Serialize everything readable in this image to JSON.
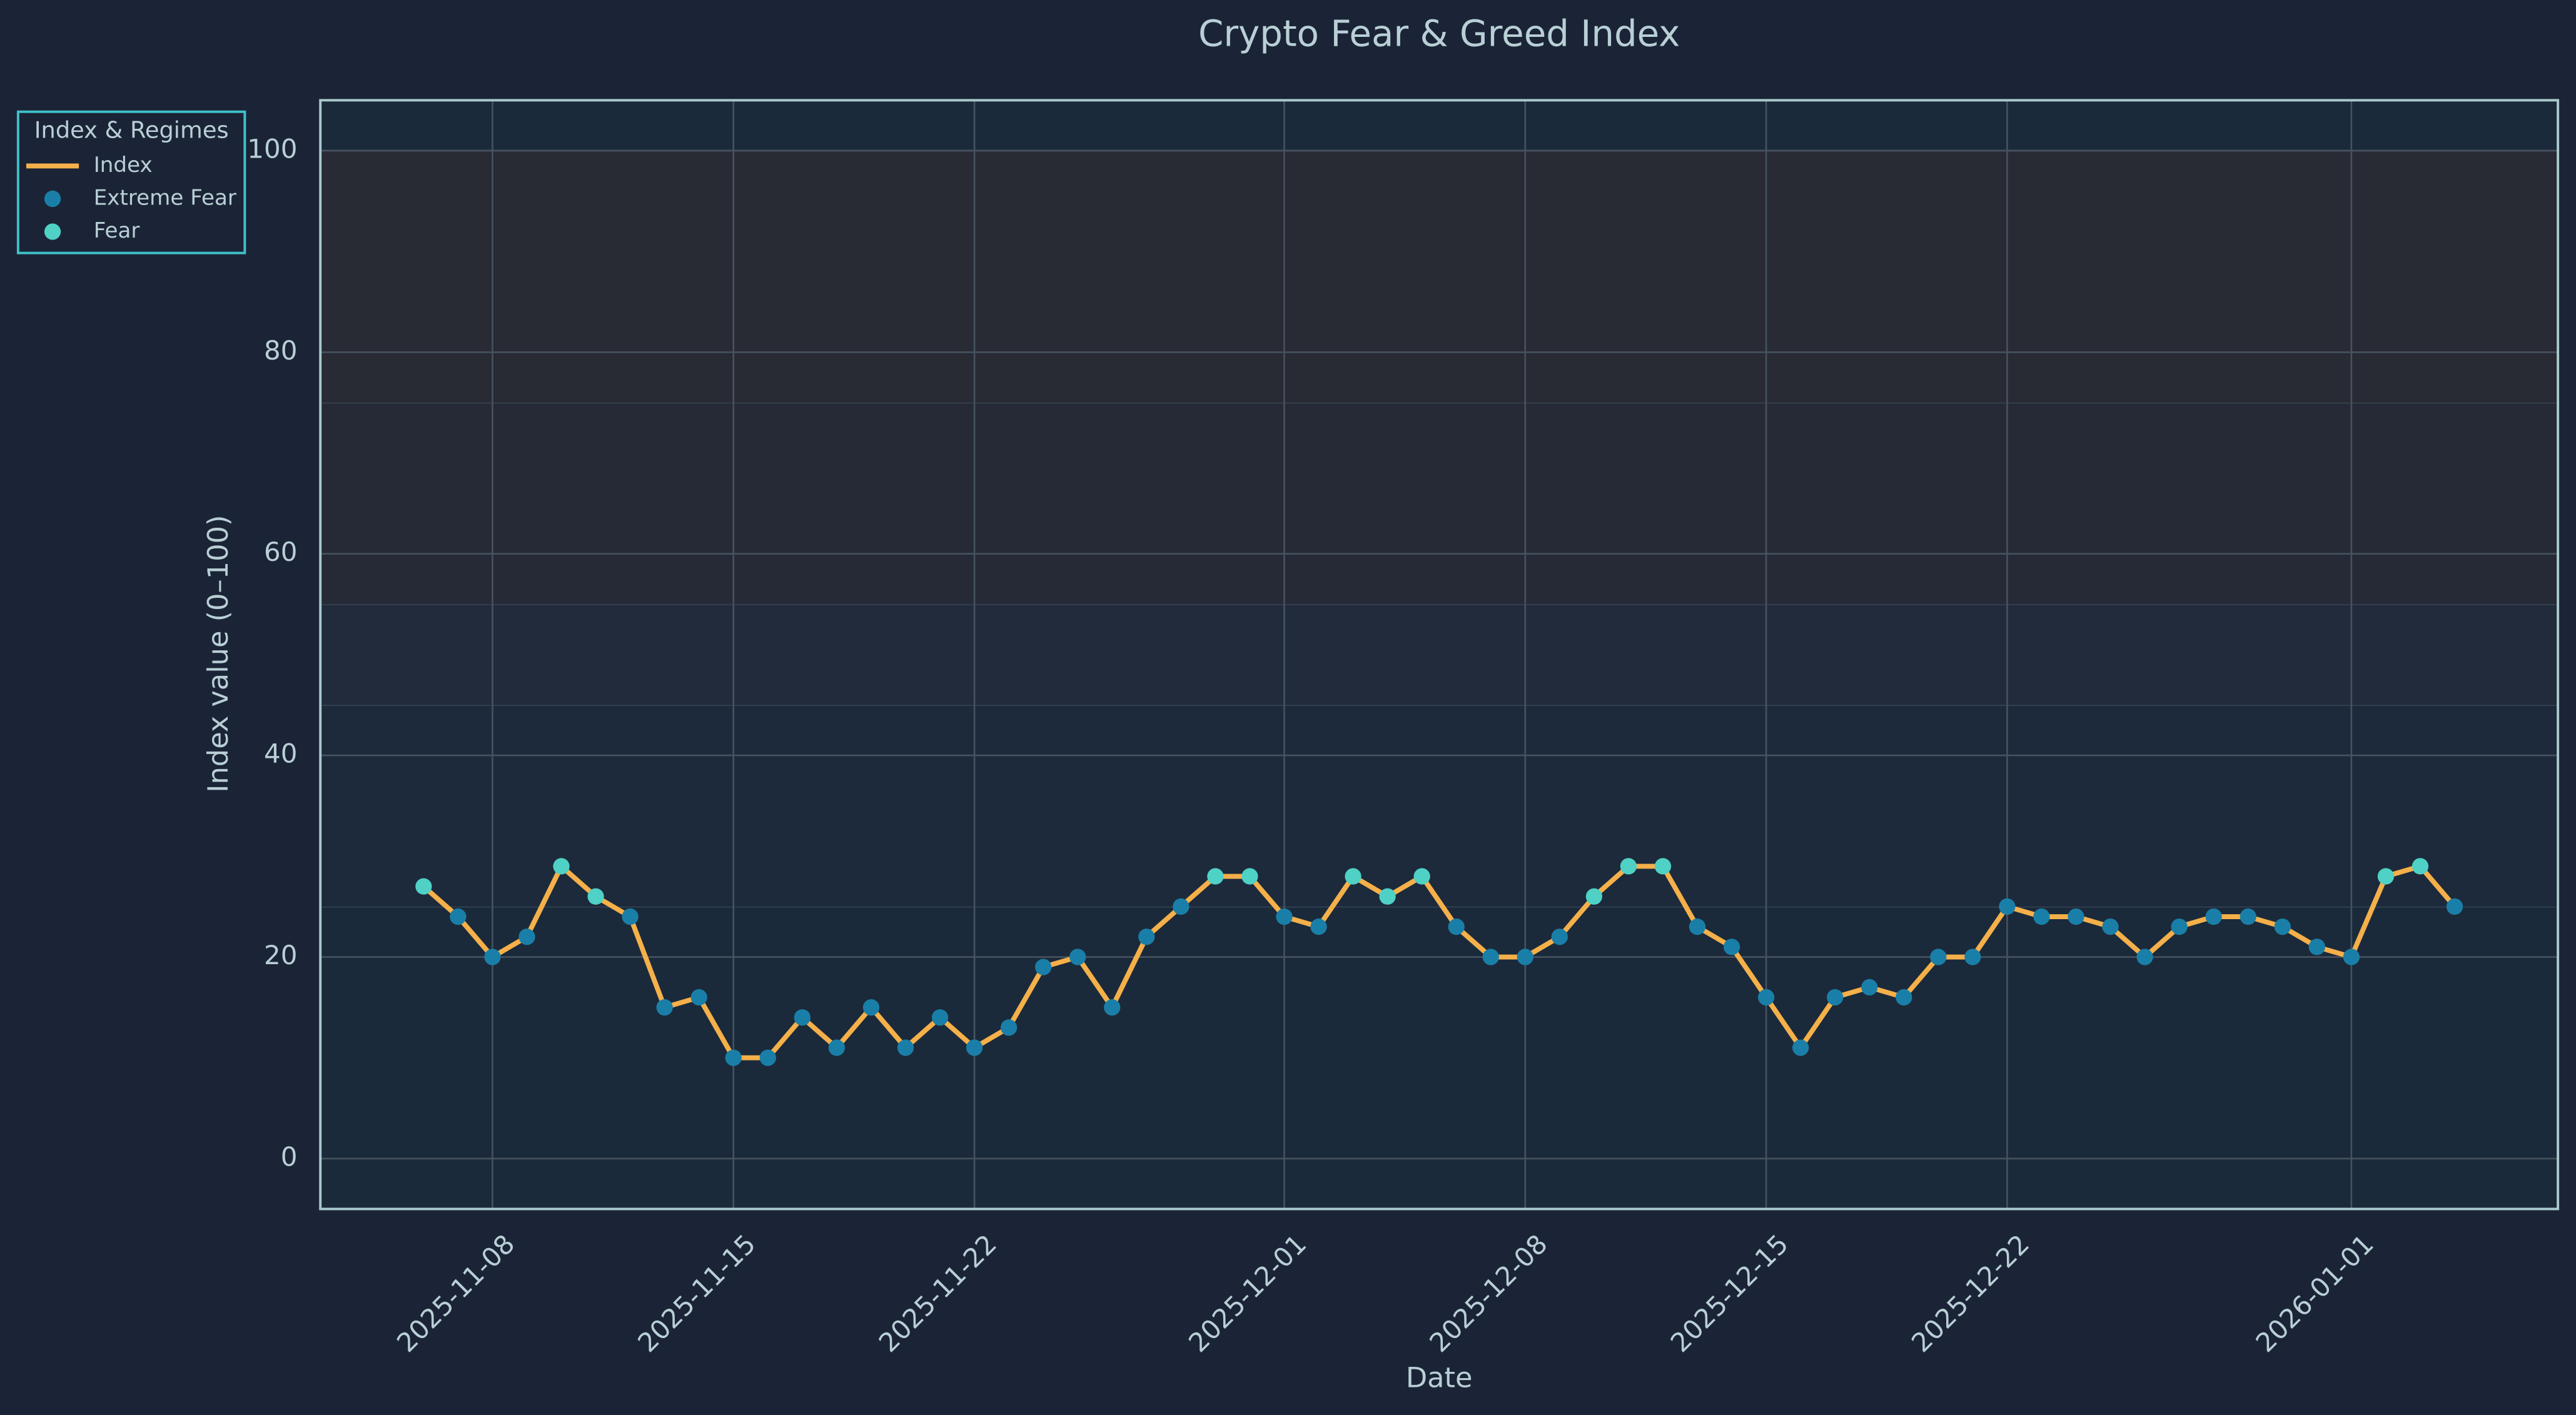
{
  "chart_data": {
    "type": "line",
    "title": "Crypto Fear & Greed Index",
    "xlabel": "Date",
    "ylabel": "Index value (0–100)",
    "x": [
      "2025-11-06",
      "2025-11-07",
      "2025-11-08",
      "2025-11-09",
      "2025-11-10",
      "2025-11-11",
      "2025-11-12",
      "2025-11-13",
      "2025-11-14",
      "2025-11-15",
      "2025-11-16",
      "2025-11-17",
      "2025-11-18",
      "2025-11-19",
      "2025-11-20",
      "2025-11-21",
      "2025-11-22",
      "2025-11-23",
      "2025-11-24",
      "2025-11-25",
      "2025-11-26",
      "2025-11-27",
      "2025-11-28",
      "2025-11-29",
      "2025-11-30",
      "2025-12-01",
      "2025-12-02",
      "2025-12-03",
      "2025-12-04",
      "2025-12-05",
      "2025-12-06",
      "2025-12-07",
      "2025-12-08",
      "2025-12-09",
      "2025-12-10",
      "2025-12-11",
      "2025-12-12",
      "2025-12-13",
      "2025-12-14",
      "2025-12-15",
      "2025-12-16",
      "2025-12-17",
      "2025-12-18",
      "2025-12-19",
      "2025-12-20",
      "2025-12-21",
      "2025-12-22",
      "2025-12-23",
      "2025-12-24",
      "2025-12-25",
      "2025-12-26",
      "2025-12-27",
      "2025-12-28",
      "2025-12-29",
      "2025-12-30",
      "2025-12-31",
      "2026-01-01",
      "2026-01-02",
      "2026-01-03",
      "2026-01-04"
    ],
    "series": [
      {
        "name": "Index",
        "color": "#f5b04a",
        "kind": "line",
        "values": [
          27,
          24,
          20,
          22,
          29,
          26,
          24,
          15,
          16,
          10,
          10,
          14,
          11,
          15,
          11,
          14,
          11,
          13,
          19,
          20,
          15,
          22,
          25,
          28,
          28,
          24,
          23,
          28,
          26,
          28,
          23,
          20,
          20,
          22,
          26,
          29,
          29,
          23,
          21,
          16,
          11,
          16,
          17,
          16,
          20,
          20,
          25,
          24,
          24,
          23,
          20,
          23,
          24,
          24,
          23,
          21,
          20,
          28,
          29,
          25
        ]
      },
      {
        "name": "Extreme Fear",
        "color": "#1a7fa8",
        "kind": "scatter",
        "values": [
          null,
          24,
          20,
          22,
          null,
          null,
          24,
          15,
          16,
          10,
          10,
          14,
          11,
          15,
          11,
          14,
          11,
          13,
          19,
          20,
          15,
          22,
          25,
          null,
          null,
          24,
          23,
          null,
          null,
          null,
          23,
          20,
          20,
          22,
          null,
          null,
          null,
          23,
          21,
          16,
          11,
          16,
          17,
          16,
          20,
          20,
          25,
          24,
          24,
          23,
          20,
          23,
          24,
          24,
          23,
          21,
          20,
          null,
          null,
          25
        ]
      },
      {
        "name": "Fear",
        "color": "#4fd1c5",
        "kind": "scatter",
        "values": [
          27,
          null,
          null,
          null,
          29,
          26,
          null,
          null,
          null,
          null,
          null,
          null,
          null,
          null,
          null,
          null,
          null,
          null,
          null,
          null,
          null,
          null,
          null,
          28,
          28,
          null,
          null,
          28,
          26,
          28,
          null,
          null,
          null,
          null,
          26,
          29,
          29,
          null,
          null,
          null,
          null,
          null,
          null,
          null,
          null,
          null,
          null,
          null,
          null,
          null,
          null,
          null,
          null,
          null,
          null,
          null,
          null,
          28,
          29,
          null
        ]
      }
    ],
    "legend_title": "Index & Regimes",
    "legend": "outside upper left",
    "xlim": [
      "2025-11-03",
      "2026-01-07"
    ],
    "xticks": [
      "2025-11-08",
      "2025-11-15",
      "2025-11-22",
      "2025-12-01",
      "2025-12-08",
      "2025-12-15",
      "2025-12-22",
      "2026-01-01"
    ],
    "ylim": [
      -5,
      105
    ],
    "yticks": [
      0,
      20,
      40,
      60,
      80,
      100
    ],
    "grid": true,
    "bands": [
      {
        "from": 0,
        "to": 25,
        "color": "#1b2a3a"
      },
      {
        "from": 25,
        "to": 45,
        "color": "#1c2a3b"
      },
      {
        "from": 45,
        "to": 55,
        "color": "#212b3c"
      },
      {
        "from": 55,
        "to": 75,
        "color": "#262a36"
      },
      {
        "from": 75,
        "to": 100,
        "color": "#282a34"
      }
    ]
  }
}
